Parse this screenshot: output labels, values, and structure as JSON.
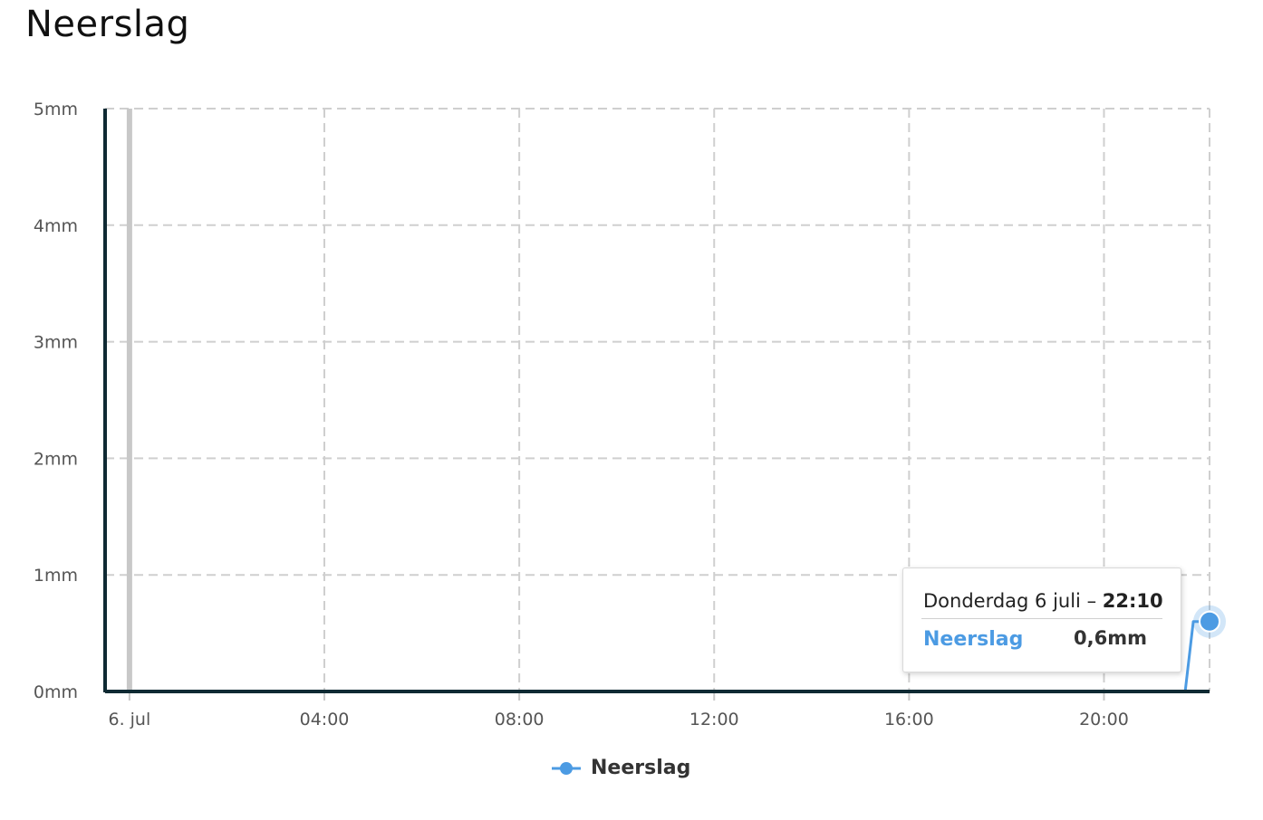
{
  "title": "Neerslag",
  "chart_data": {
    "type": "line",
    "title": "Neerslag",
    "x_type": "time",
    "x_start": "2017-07-05T23:30",
    "x_end": "2017-07-06T22:10",
    "y_ticks": [
      {
        "value": 0,
        "label": "0mm"
      },
      {
        "value": 1,
        "label": "1mm"
      },
      {
        "value": 2,
        "label": "2mm"
      },
      {
        "value": 3,
        "label": "3mm"
      },
      {
        "value": 4,
        "label": "4mm"
      },
      {
        "value": 5,
        "label": "5mm"
      }
    ],
    "ylim": [
      0,
      5
    ],
    "x_ticks": [
      {
        "time": "2017-07-06T00:00",
        "label": "6. jul"
      },
      {
        "time": "2017-07-06T04:00",
        "label": "04:00"
      },
      {
        "time": "2017-07-06T08:00",
        "label": "08:00"
      },
      {
        "time": "2017-07-06T12:00",
        "label": "12:00"
      },
      {
        "time": "2017-07-06T16:00",
        "label": "16:00"
      },
      {
        "time": "2017-07-06T20:00",
        "label": "20:00"
      }
    ],
    "grid": true,
    "series": [
      {
        "name": "Neerslag",
        "color": "#4c9be3",
        "points": [
          {
            "x": "2017-07-05T23:30",
            "y": 0
          },
          {
            "x": "2017-07-06T21:40",
            "y": 0
          },
          {
            "x": "2017-07-06T21:50",
            "y": 0.6
          },
          {
            "x": "2017-07-06T22:00",
            "y": 0.6
          },
          {
            "x": "2017-07-06T22:10",
            "y": 0.6
          }
        ]
      }
    ],
    "legend": {
      "position": "bottom-center",
      "label": "Neerslag"
    },
    "tooltip": {
      "date_text": "Donderdag 6 juli – ",
      "time_text": "22:10",
      "series": "Neerslag",
      "value": "0,6mm"
    }
  }
}
